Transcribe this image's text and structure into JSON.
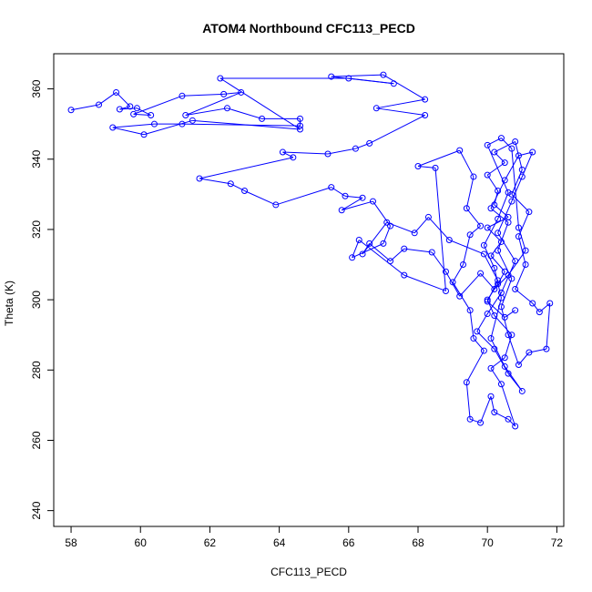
{
  "chart_data": {
    "type": "line",
    "title": "ATOM4 Northbound CFC113_PECD",
    "xlabel": "CFC113_PECD",
    "ylabel": "Theta (K)",
    "xlim": [
      57.5,
      72.2
    ],
    "ylim": [
      235.5,
      370
    ],
    "x_ticks": [
      58,
      60,
      62,
      64,
      66,
      68,
      70,
      72
    ],
    "y_ticks": [
      240,
      260,
      280,
      300,
      320,
      340,
      360
    ],
    "grid": false,
    "legend": "none",
    "colors": {
      "series": "#0000ff",
      "axes": "#000000",
      "background": "#ffffff"
    },
    "series": [
      {
        "marker": "open-circle",
        "points": [
          [
            58.0,
            354.0
          ],
          [
            58.8,
            355.5
          ],
          [
            59.3,
            359.0
          ],
          [
            59.7,
            355.0
          ],
          [
            59.4,
            354.2
          ],
          [
            59.9,
            354.5
          ],
          [
            60.3,
            352.5
          ],
          [
            59.8,
            352.8
          ],
          [
            61.2,
            358.0
          ],
          [
            62.4,
            358.5
          ],
          [
            62.9,
            359.0
          ],
          [
            61.3,
            352.5
          ],
          [
            62.5,
            354.5
          ],
          [
            63.5,
            351.5
          ],
          [
            64.6,
            351.5
          ],
          [
            64.6,
            349.5
          ],
          [
            61.2,
            350.0
          ],
          [
            60.4,
            350.0
          ],
          [
            59.2,
            349.0
          ],
          [
            60.1,
            347.0
          ],
          [
            61.5,
            351.0
          ],
          [
            64.6,
            348.5
          ],
          [
            62.3,
            363.0
          ],
          [
            66.0,
            363.0
          ],
          [
            67.3,
            361.5
          ],
          [
            65.5,
            363.5
          ],
          [
            67.0,
            364.0
          ],
          [
            68.2,
            357.0
          ],
          [
            66.8,
            354.5
          ],
          [
            68.2,
            352.5
          ],
          [
            66.6,
            344.5
          ],
          [
            66.2,
            343.0
          ],
          [
            65.4,
            341.5
          ],
          [
            64.1,
            342.0
          ],
          [
            64.4,
            340.5
          ],
          [
            61.7,
            334.5
          ],
          [
            62.6,
            333.0
          ],
          [
            63.0,
            331.0
          ],
          [
            63.9,
            327.0
          ],
          [
            65.5,
            332.0
          ],
          [
            65.9,
            329.5
          ],
          [
            66.4,
            329.0
          ],
          [
            65.8,
            325.5
          ],
          [
            66.7,
            328.0
          ],
          [
            67.2,
            321.0
          ],
          [
            67.0,
            316.0
          ],
          [
            66.1,
            312.0
          ],
          [
            66.3,
            317.0
          ],
          [
            67.6,
            307.0
          ],
          [
            68.8,
            302.5
          ],
          [
            68.5,
            337.5
          ],
          [
            68.0,
            338.0
          ],
          [
            69.2,
            342.5
          ],
          [
            69.6,
            335.0
          ],
          [
            69.4,
            326.0
          ],
          [
            69.8,
            321.0
          ],
          [
            69.5,
            318.5
          ],
          [
            69.3,
            310.0
          ],
          [
            69.0,
            305.0
          ],
          [
            69.5,
            297.0
          ],
          [
            69.6,
            289.0
          ],
          [
            69.9,
            285.5
          ],
          [
            69.4,
            276.5
          ],
          [
            69.5,
            266.0
          ],
          [
            69.8,
            265.0
          ],
          [
            70.1,
            272.5
          ],
          [
            70.2,
            268.0
          ],
          [
            70.6,
            266.0
          ],
          [
            70.8,
            264.0
          ],
          [
            70.4,
            276.0
          ],
          [
            70.1,
            280.5
          ],
          [
            70.5,
            283.5
          ],
          [
            70.7,
            290.0
          ],
          [
            70.2,
            295.5
          ],
          [
            70.0,
            300.0
          ],
          [
            70.3,
            304.5
          ],
          [
            70.5,
            308.0
          ],
          [
            70.1,
            312.5
          ],
          [
            70.4,
            316.5
          ],
          [
            70.0,
            320.5
          ],
          [
            70.6,
            323.5
          ],
          [
            70.2,
            327.0
          ],
          [
            70.3,
            331.0
          ],
          [
            70.0,
            335.5
          ],
          [
            70.5,
            339.0
          ],
          [
            70.2,
            342.0
          ],
          [
            70.8,
            345.0
          ],
          [
            71.0,
            337.0
          ],
          [
            70.7,
            330.0
          ],
          [
            71.2,
            325.0
          ],
          [
            70.9,
            318.0
          ],
          [
            71.1,
            310.0
          ],
          [
            70.8,
            303.0
          ],
          [
            71.3,
            299.0
          ],
          [
            71.5,
            296.5
          ],
          [
            71.8,
            299.0
          ],
          [
            71.7,
            286.0
          ],
          [
            71.2,
            285.0
          ],
          [
            70.9,
            281.5
          ],
          [
            70.6,
            290.0
          ],
          [
            70.4,
            298.0
          ],
          [
            70.7,
            306.0
          ],
          [
            70.3,
            314.0
          ],
          [
            70.6,
            322.0
          ],
          [
            70.1,
            326.0
          ],
          [
            70.5,
            334.0
          ],
          [
            70.9,
            341.0
          ],
          [
            71.3,
            342.0
          ],
          [
            71.0,
            335.0
          ],
          [
            70.7,
            328.0
          ],
          [
            70.3,
            319.0
          ],
          [
            70.8,
            311.0
          ],
          [
            70.4,
            302.0
          ],
          [
            70.0,
            296.0
          ],
          [
            69.7,
            291.0
          ],
          [
            70.2,
            286.0
          ],
          [
            70.6,
            279.0
          ],
          [
            71.0,
            274.0
          ],
          [
            70.5,
            281.0
          ],
          [
            70.1,
            289.0
          ],
          [
            70.4,
            300.5
          ],
          [
            70.2,
            309.0
          ],
          [
            69.9,
            315.5
          ],
          [
            70.3,
            323.0
          ],
          [
            70.6,
            330.5
          ],
          [
            70.0,
            344.0
          ],
          [
            70.4,
            346.0
          ],
          [
            70.7,
            343.0
          ],
          [
            70.9,
            320.5
          ],
          [
            71.1,
            314.0
          ],
          [
            70.6,
            307.0
          ],
          [
            70.2,
            303.0
          ],
          [
            69.8,
            307.5
          ],
          [
            69.2,
            301.0
          ],
          [
            68.8,
            308.0
          ],
          [
            68.4,
            313.5
          ],
          [
            67.6,
            314.5
          ],
          [
            67.2,
            311.0
          ],
          [
            66.6,
            316.0
          ],
          [
            66.4,
            313.0
          ],
          [
            67.1,
            322.0
          ],
          [
            67.9,
            319.0
          ],
          [
            68.3,
            323.5
          ],
          [
            68.9,
            317.0
          ],
          [
            69.9,
            313.0
          ],
          [
            70.3,
            305.5
          ],
          [
            70.0,
            299.5
          ],
          [
            70.5,
            295.0
          ],
          [
            70.8,
            297.0
          ]
        ]
      }
    ]
  }
}
